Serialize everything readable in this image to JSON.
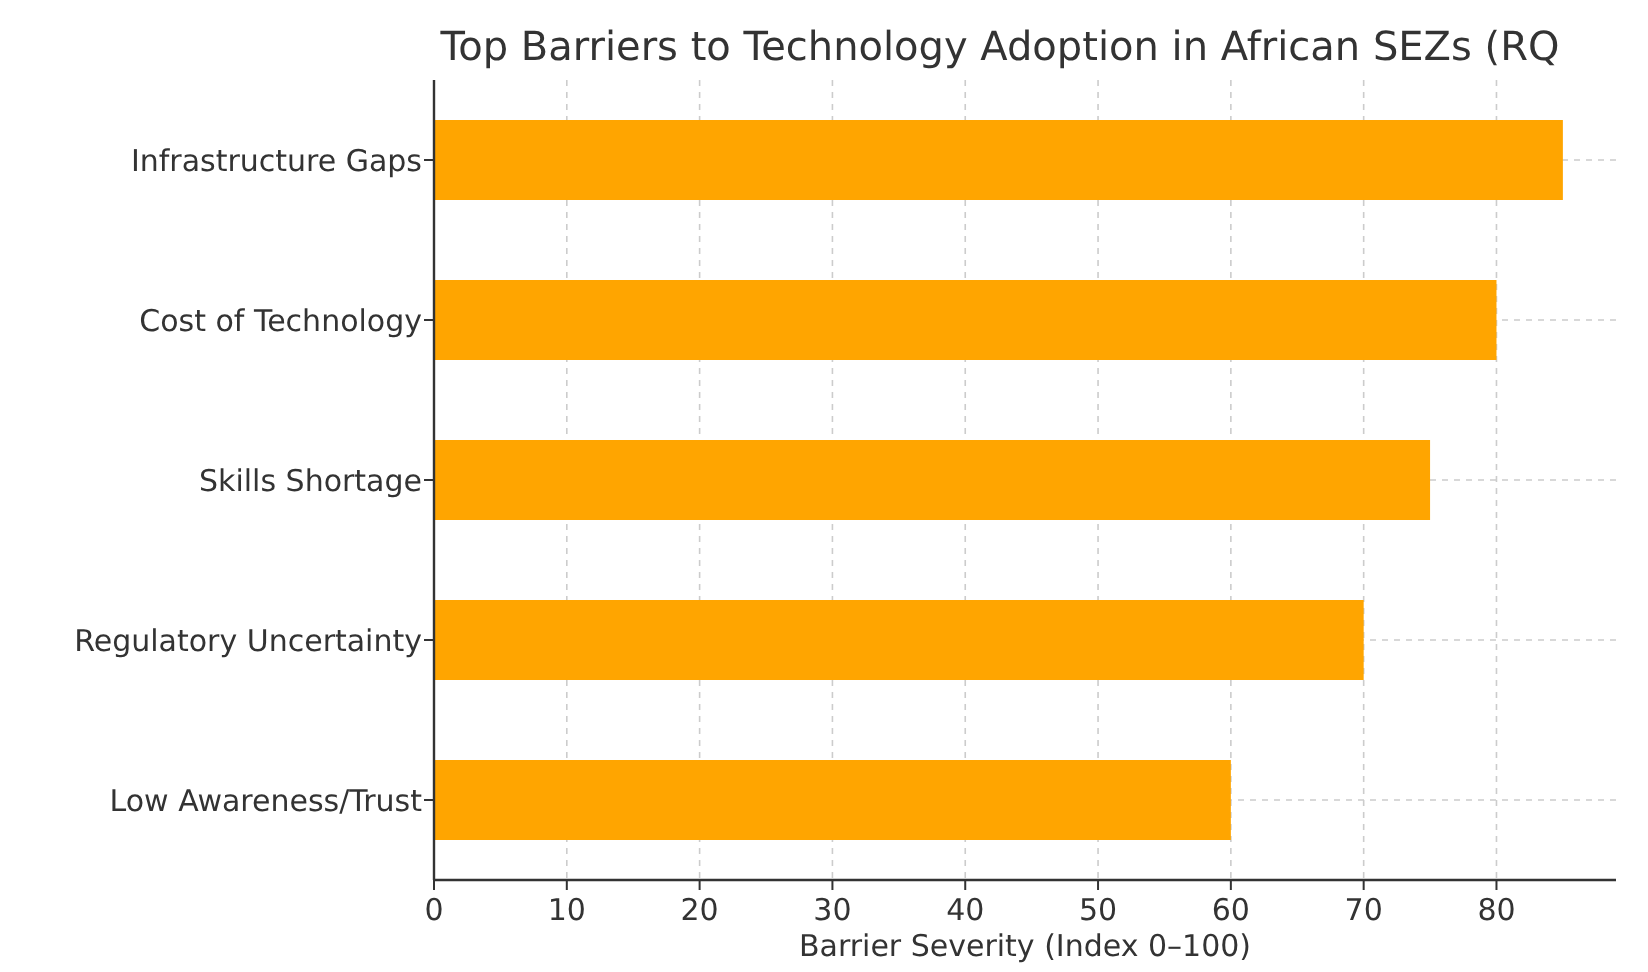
{
  "chart_data": {
    "type": "bar",
    "orientation": "horizontal",
    "title": "Top Barriers to Technology Adoption in African SEZs (RQ",
    "xlabel": "Barrier Severity (Index 0–100)",
    "categories": [
      "Infrastructure Gaps",
      "Cost of Technology",
      "Skills Shortage",
      "Regulatory Uncertainty",
      "Low Awareness/Trust"
    ],
    "values": [
      85,
      80,
      75,
      70,
      60
    ],
    "color": "#ffa500",
    "xlim": [
      0,
      89
    ],
    "xticks": [
      0,
      10,
      20,
      30,
      40,
      50,
      60,
      70,
      80
    ],
    "grid": true
  }
}
